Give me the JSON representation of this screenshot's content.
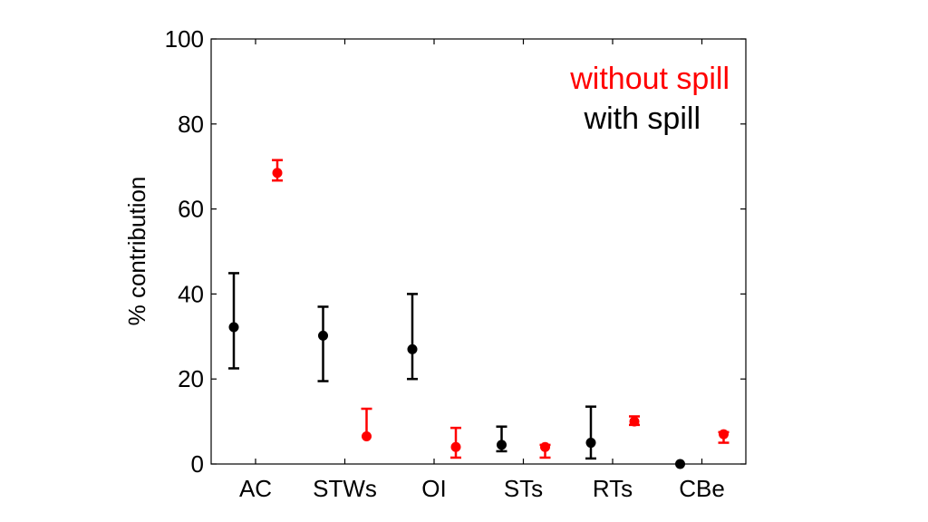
{
  "chart_data": {
    "type": "scatter",
    "title": "",
    "xlabel": "",
    "ylabel": "% contribution",
    "ylim": [
      0,
      100
    ],
    "yticks": [
      "0",
      "20",
      "40",
      "60",
      "80",
      "100"
    ],
    "categories": [
      "AC",
      "STWs",
      "OI",
      "STs",
      "RTs",
      "CBe"
    ],
    "grid": false,
    "legend_position": "top-right",
    "series": [
      {
        "name": "without spill",
        "color": "#ff0000",
        "values": [
          68.5,
          6.5,
          4.0,
          4.0,
          10.0,
          7.0
        ],
        "err_low": [
          1.8,
          0,
          2.5,
          2.5,
          0.8,
          2.0
        ],
        "err_high": [
          3.0,
          6.5,
          4.5,
          0.5,
          1.2,
          0.5
        ]
      },
      {
        "name": "with spill",
        "color": "#000000",
        "values": [
          32.2,
          30.2,
          27.0,
          4.5,
          5.0,
          0.0
        ],
        "err_low": [
          9.7,
          10.7,
          7.0,
          1.5,
          3.7,
          0
        ],
        "err_high": [
          12.7,
          6.8,
          13.0,
          4.3,
          8.5,
          0
        ]
      }
    ]
  }
}
